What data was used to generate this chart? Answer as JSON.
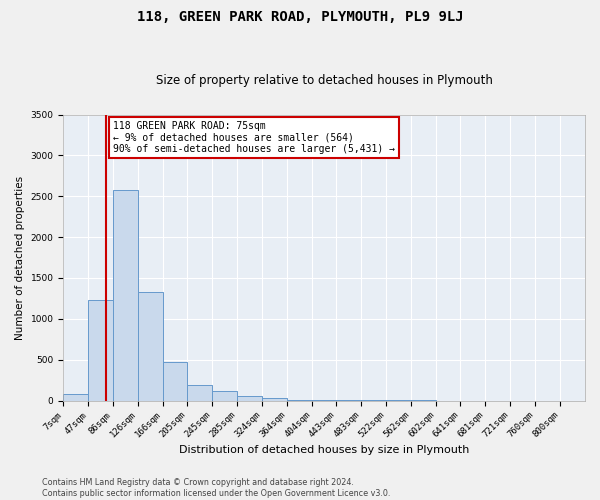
{
  "title": "118, GREEN PARK ROAD, PLYMOUTH, PL9 9LJ",
  "subtitle": "Size of property relative to detached houses in Plymouth",
  "xlabel": "Distribution of detached houses by size in Plymouth",
  "ylabel": "Number of detached properties",
  "bin_labels": [
    "7sqm",
    "47sqm",
    "86sqm",
    "126sqm",
    "166sqm",
    "205sqm",
    "245sqm",
    "285sqm",
    "324sqm",
    "364sqm",
    "404sqm",
    "443sqm",
    "483sqm",
    "522sqm",
    "562sqm",
    "602sqm",
    "641sqm",
    "681sqm",
    "721sqm",
    "760sqm",
    "800sqm"
  ],
  "bar_heights": [
    75,
    1225,
    2575,
    1325,
    475,
    185,
    115,
    60,
    30,
    10,
    5,
    3,
    2,
    1,
    1,
    0,
    0,
    0,
    0,
    0,
    0
  ],
  "bar_color": "#c9d9ec",
  "bar_edgecolor": "#6699cc",
  "background_color": "#e8eef5",
  "fig_background_color": "#f0f0f0",
  "grid_color": "#ffffff",
  "annotation_text": "118 GREEN PARK ROAD: 75sqm\n← 9% of detached houses are smaller (564)\n90% of semi-detached houses are larger (5,431) →",
  "annotation_box_color": "#ffffff",
  "annotation_border_color": "#cc0000",
  "red_line_x": 75,
  "red_line_color": "#cc0000",
  "ylim": [
    0,
    3500
  ],
  "yticks": [
    0,
    500,
    1000,
    1500,
    2000,
    2500,
    3000,
    3500
  ],
  "bin_edges": [
    7,
    47,
    86,
    126,
    166,
    205,
    245,
    285,
    324,
    364,
    404,
    443,
    483,
    522,
    562,
    602,
    641,
    681,
    721,
    760,
    800
  ],
  "footer_line1": "Contains HM Land Registry data © Crown copyright and database right 2024.",
  "footer_line2": "Contains public sector information licensed under the Open Government Licence v3.0.",
  "title_fontsize": 10,
  "subtitle_fontsize": 8.5,
  "xlabel_fontsize": 8,
  "ylabel_fontsize": 7.5,
  "tick_fontsize": 6.5,
  "footer_fontsize": 5.8,
  "annotation_fontsize": 7
}
